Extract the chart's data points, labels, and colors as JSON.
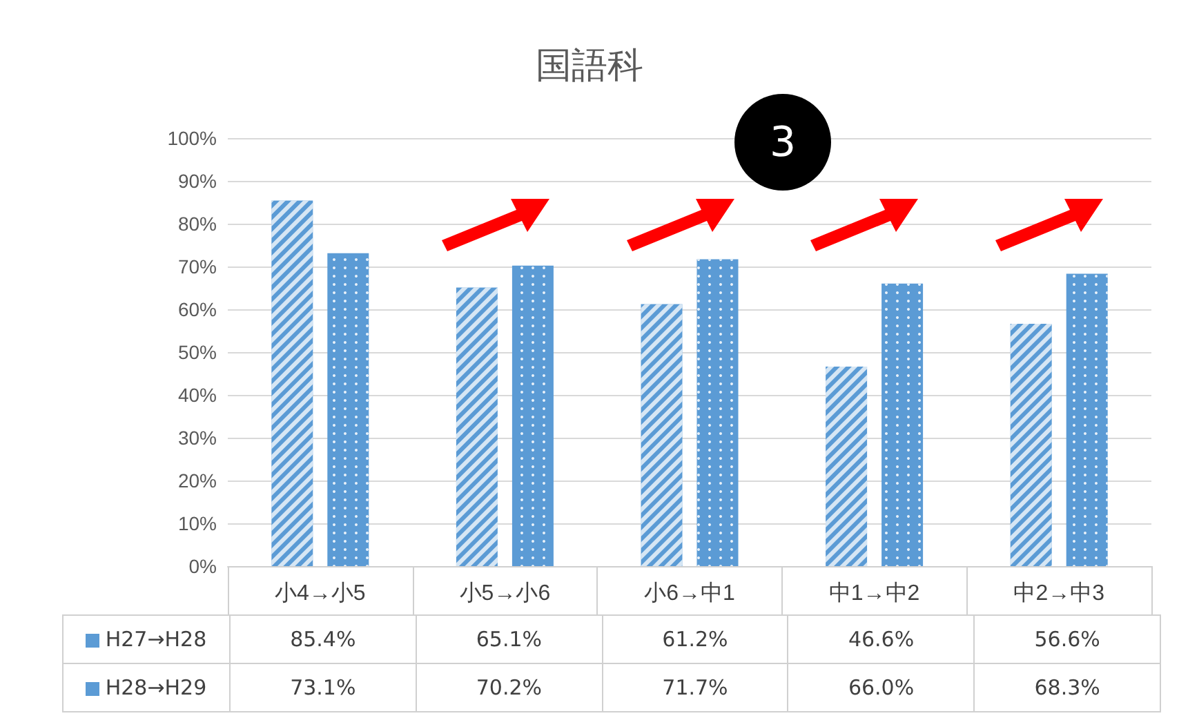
{
  "chart_data": {
    "type": "bar",
    "title": "国語科",
    "categories": [
      "小4→小5",
      "小5→小6",
      "小6→中1",
      "中1→中2",
      "中2→中3"
    ],
    "series": [
      {
        "name": "H27→H28",
        "color": "#5b9bd5",
        "values": [
          85.4,
          65.1,
          61.2,
          46.6,
          56.6
        ],
        "value_labels": [
          "85.4%",
          "65.1%",
          "61.2%",
          "46.6%",
          "56.6%"
        ]
      },
      {
        "name": "H28→H29",
        "color": "#5b9bd5",
        "values": [
          73.1,
          70.2,
          71.7,
          66.0,
          68.3
        ],
        "value_labels": [
          "73.1%",
          "70.2%",
          "71.7%",
          "66.0%",
          "68.3%"
        ]
      }
    ],
    "ylim": [
      0,
      100
    ],
    "yticks": [
      {
        "value": 0,
        "label": "0%"
      },
      {
        "value": 10,
        "label": "10%"
      },
      {
        "value": 20,
        "label": "20%"
      },
      {
        "value": 30,
        "label": "30%"
      },
      {
        "value": 40,
        "label": "40%"
      },
      {
        "value": 50,
        "label": "50%"
      },
      {
        "value": 60,
        "label": "60%"
      },
      {
        "value": 70,
        "label": "70%"
      },
      {
        "value": 80,
        "label": "80%"
      },
      {
        "value": 90,
        "label": "90%"
      },
      {
        "value": 100,
        "label": "100%"
      }
    ],
    "grid": "y",
    "legend": "bottom",
    "annotations": [
      "3"
    ]
  }
}
